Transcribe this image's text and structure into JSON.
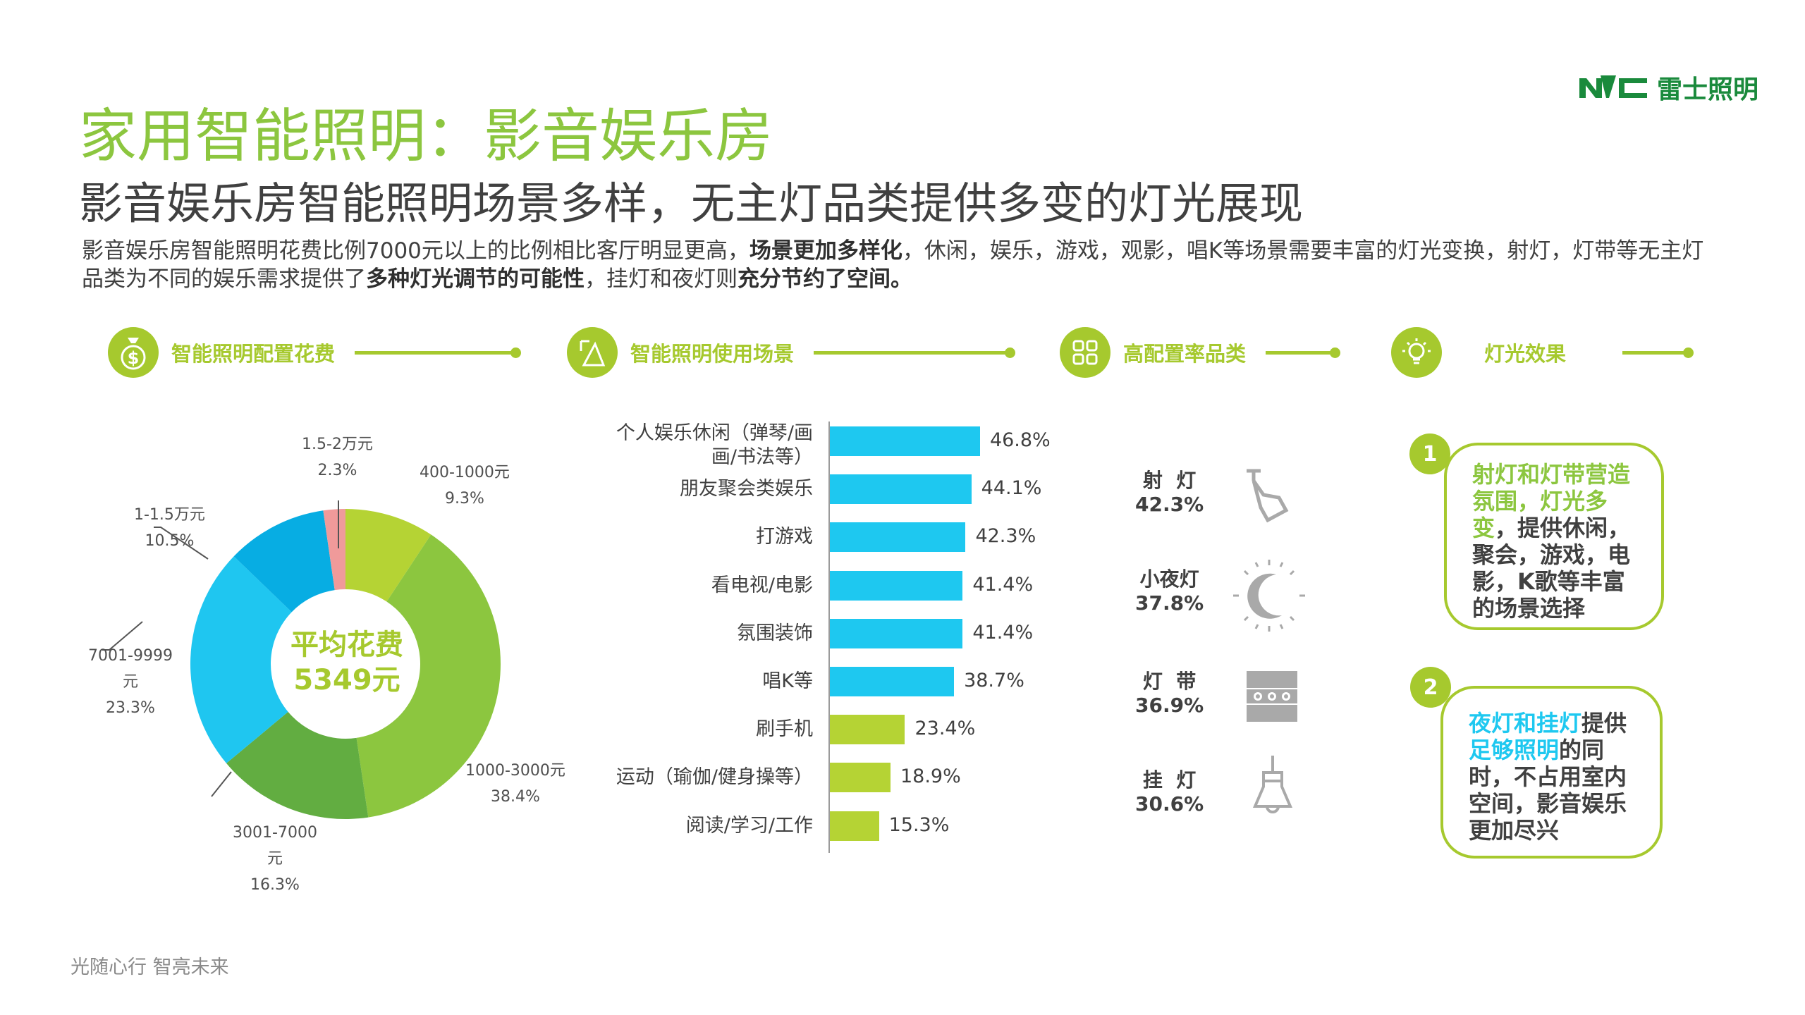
{
  "logo": {
    "mark": "NVC",
    "name": "雷士照明"
  },
  "title": "家用智能照明：影音娱乐房",
  "subtitle": "影音娱乐房智能照明场景多样，无主灯品类提供多变的灯光展现",
  "paragraph": {
    "p1": "影音娱乐房智能照明花费比例7000元以上的比例相比客厅明显更高，",
    "b1": "场景更加多样化",
    "p2": "，休闲，娱乐，游戏，观影，唱K等场景需要丰富的灯光变换，射灯，灯带等无主灯品类为不同的娱乐需求提供了",
    "b2": "多种灯光调节的可能性",
    "p3": "，挂灯和夜灯则",
    "b3": "充分节约了空间。"
  },
  "sections": [
    {
      "label": "智能照明配置花费",
      "icon": "money-bag-icon"
    },
    {
      "label": "智能照明使用场景",
      "icon": "scene-icon"
    },
    {
      "label": "高配置率品类",
      "icon": "grid-icon"
    },
    {
      "label": "灯光效果",
      "icon": "bulb-icon"
    }
  ],
  "colors": {
    "accent": "#a6c92e",
    "green": "#8cc63f",
    "cyan": "#1ec8f0"
  },
  "chart_data": [
    {
      "type": "pie",
      "title": "智能照明配置花费",
      "center_label": [
        "平均花费",
        "5349元"
      ],
      "slices": [
        {
          "label": "400-1000元",
          "value": 9.3,
          "text": "9.3%",
          "color": "#b5d334"
        },
        {
          "label": "1000-3000元",
          "value": 38.4,
          "text": "38.4%",
          "color": "#8cc63f"
        },
        {
          "label": "3001-7000元",
          "value": 16.3,
          "text": "16.3%",
          "color": "#62ad41"
        },
        {
          "label": "7001-9999元",
          "value": 23.3,
          "text": "23.3%",
          "color": "#1fc6f0"
        },
        {
          "label": "1-1.5万元",
          "value": 10.5,
          "text": "10.5%",
          "color": "#07ade3"
        },
        {
          "label": "1.5-2万元",
          "value": 2.3,
          "text": "2.3%",
          "color": "#f09a9a"
        }
      ]
    },
    {
      "type": "bar",
      "orientation": "horizontal",
      "title": "智能照明使用场景",
      "categories": [
        "个人娱乐休闲（弹琴/画画/书法等）",
        "朋友聚会类娱乐",
        "打游戏",
        "看电视/电影",
        "氛围装饰",
        "唱K等",
        "刷手机",
        "运动（瑜伽/健身操等）",
        "阅读/学习/工作"
      ],
      "label_lines": [
        [
          "个人娱乐休闲（弹琴/画",
          "画/书法等）"
        ],
        [
          "朋友聚会类娱乐"
        ],
        [
          "打游戏"
        ],
        [
          "看电视/电影"
        ],
        [
          "氛围装饰"
        ],
        [
          "唱K等"
        ],
        [
          "刷手机"
        ],
        [
          "运动（瑜伽/健身操等）"
        ],
        [
          "阅读/学习/工作"
        ]
      ],
      "values": [
        46.8,
        44.1,
        42.3,
        41.4,
        41.4,
        38.7,
        23.4,
        18.9,
        15.3
      ],
      "value_labels": [
        "46.8%",
        "44.1%",
        "42.3%",
        "41.4%",
        "41.4%",
        "38.7%",
        "23.4%",
        "18.9%",
        "15.3%"
      ],
      "colors": [
        "#1ec8f0",
        "#1ec8f0",
        "#1ec8f0",
        "#1ec8f0",
        "#1ec8f0",
        "#1ec8f0",
        "#b5d334",
        "#b5d334",
        "#b5d334"
      ]
    }
  ],
  "categories": [
    {
      "name": "射  灯",
      "value": "42.3%",
      "icon": "spotlight-icon"
    },
    {
      "name": "小夜灯",
      "value": "37.8%",
      "icon": "night-light-icon"
    },
    {
      "name": "灯  带",
      "value": "36.9%",
      "icon": "light-strip-icon"
    },
    {
      "name": "挂  灯",
      "value": "30.6%",
      "icon": "pendant-lamp-icon"
    }
  ],
  "effects": [
    {
      "num": "1",
      "hl": "射灯和灯带营造氛围，灯光多变",
      "rest": "，提供休闲，聚会，游戏，电影，K歌等丰富的场景选择"
    },
    {
      "num": "2",
      "hl1": "夜灯和挂灯",
      "t1": "提供",
      "hl2": "足够照明",
      "t2": "的同时，不占用室内空间，影音娱乐更加尽兴"
    }
  ],
  "footer": "光随心行   智亮未来"
}
